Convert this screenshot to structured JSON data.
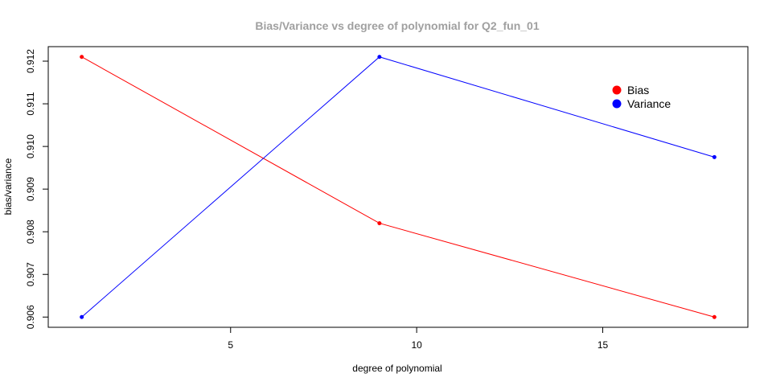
{
  "chart_data": {
    "type": "line",
    "title": "Bias/Variance vs degree of polynomial for Q2_fun_01",
    "xlabel": "degree of polynomial",
    "ylabel": "bias/variance",
    "x": [
      1,
      9,
      18
    ],
    "xlim": [
      0.1,
      18.9
    ],
    "ylim": [
      0.90576,
      0.91234
    ],
    "x_ticks": [
      5,
      10,
      15
    ],
    "y_ticks": [
      0.906,
      0.907,
      0.908,
      0.909,
      0.91,
      0.911,
      0.912
    ],
    "y_tick_labels": [
      "0.906",
      "0.907",
      "0.908",
      "0.909",
      "0.910",
      "0.911",
      "0.912"
    ],
    "series": [
      {
        "name": "Bias",
        "color": "#ff0000",
        "values": [
          0.9121,
          0.9082,
          0.906
        ]
      },
      {
        "name": "Variance",
        "color": "#0000ff",
        "values": [
          0.906,
          0.9121,
          0.90975
        ]
      }
    ],
    "legend_position": "top-right",
    "grid": false
  }
}
